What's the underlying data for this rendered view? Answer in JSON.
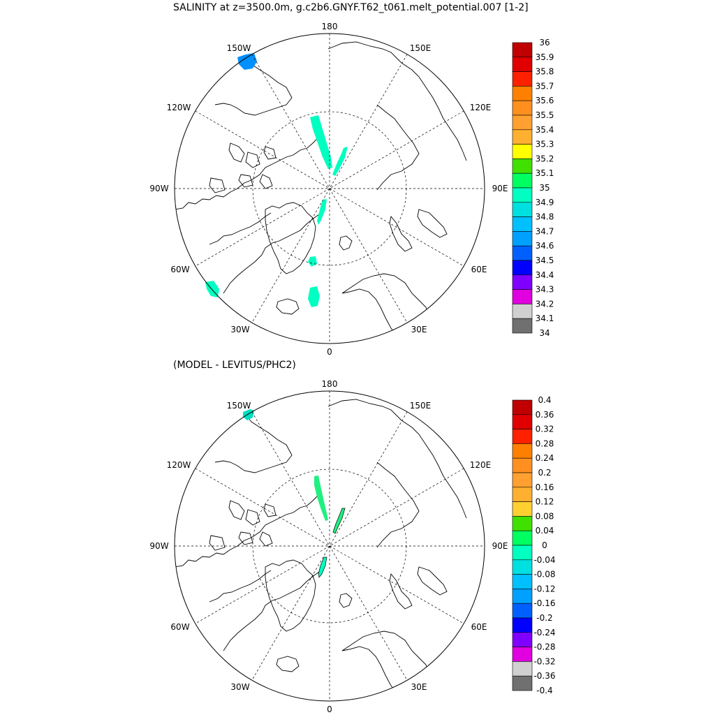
{
  "maps": [
    {
      "title": "SALINITY at z=3500.0m, g.c2b6.GNYF.T62_t061.melt_potential.007 [1-2]",
      "longitude_labels": [
        "180",
        "150E",
        "120E",
        "90E",
        "60E",
        "30E",
        "0",
        "30W",
        "60W",
        "90W",
        "120W",
        "150W"
      ],
      "colorbar": {
        "labels": [
          "36",
          "35.9",
          "35.8",
          "35.7",
          "35.6",
          "35.5",
          "35.4",
          "35.3",
          "35.2",
          "35.1",
          "35",
          "34.9",
          "34.8",
          "34.7",
          "34.6",
          "34.5",
          "34.4",
          "34.3",
          "34.2",
          "34.1",
          "34"
        ],
        "colors": [
          "#c00000",
          "#e00000",
          "#ff2000",
          "#ff8000",
          "#ff9020",
          "#ffa030",
          "#ffb030",
          "#ffff00",
          "#40e000",
          "#00ff60",
          "#00ffc0",
          "#00e0e0",
          "#00c0ff",
          "#00a0ff",
          "#0060ff",
          "#0000ff",
          "#8000ff",
          "#e000e0",
          "#d0d0d0",
          "#707070"
        ]
      }
    },
    {
      "title": "(MODEL - LEVITUS/PHC2)",
      "longitude_labels": [
        "180",
        "150E",
        "120E",
        "90E",
        "60E",
        "30E",
        "0",
        "30W",
        "60W",
        "90W",
        "120W",
        "150W"
      ],
      "colorbar": {
        "labels": [
          "0.4",
          "0.36",
          "0.32",
          "0.28",
          "0.24",
          "0.2",
          "0.16",
          "0.12",
          "0.08",
          "0.04",
          "0",
          "-0.04",
          "-0.08",
          "-0.12",
          "-0.16",
          "-0.2",
          "-0.24",
          "-0.28",
          "-0.32",
          "-0.36",
          "-0.4"
        ],
        "colors": [
          "#c00000",
          "#e00000",
          "#ff2000",
          "#ff8000",
          "#ff9020",
          "#ffa030",
          "#ffb030",
          "#ffd030",
          "#40e000",
          "#00ff60",
          "#00ffc0",
          "#00e0e0",
          "#00c0ff",
          "#00a0ff",
          "#0060ff",
          "#0000ff",
          "#8000ff",
          "#e000e0",
          "#d0d0d0",
          "#707070"
        ]
      }
    }
  ]
}
